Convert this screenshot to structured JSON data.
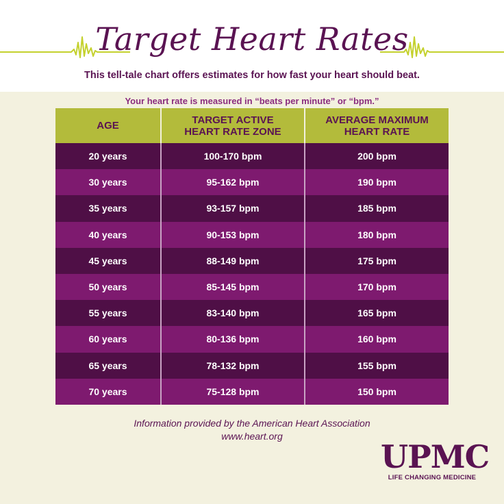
{
  "header": {
    "title": "Target Heart Rates",
    "subtitle": "This tell-tale chart offers estimates for how fast your heart should beat.",
    "note": "Your heart rate is measured in “beats per minute” or “bpm.”"
  },
  "colors": {
    "purple_dark": "#4f0f46",
    "purple_light": "#7e1a6f",
    "header_green": "#b3bb3b",
    "line_green": "#c4d12e",
    "background": "#f3f1df"
  },
  "chart_data": {
    "type": "table",
    "columns": [
      {
        "line1": "AGE",
        "line2": ""
      },
      {
        "line1": "TARGET ACTIVE",
        "line2": "HEART RATE ZONE"
      },
      {
        "line1": "AVERAGE MAXIMUM",
        "line2": "HEART RATE"
      }
    ],
    "rows": [
      [
        "20 years",
        "100-170 bpm",
        "200 bpm"
      ],
      [
        "30 years",
        "95-162 bpm",
        "190 bpm"
      ],
      [
        "35 years",
        "93-157 bpm",
        "185 bpm"
      ],
      [
        "40 years",
        "90-153 bpm",
        "180 bpm"
      ],
      [
        "45 years",
        "88-149 bpm",
        "175 bpm"
      ],
      [
        "50 years",
        "85-145 bpm",
        "170 bpm"
      ],
      [
        "55 years",
        "83-140 bpm",
        "165 bpm"
      ],
      [
        "60 years",
        "80-136 bpm",
        "160 bpm"
      ],
      [
        "65 years",
        "78-132 bpm",
        "155 bpm"
      ],
      [
        "70 years",
        "75-128 bpm",
        "150 bpm"
      ]
    ]
  },
  "footer": {
    "source_line1": "Information provided by the American Heart Association",
    "source_line2": "www.heart.org"
  },
  "logo": {
    "word": "UPMC",
    "tagline": "LIFE CHANGING MEDICINE"
  }
}
